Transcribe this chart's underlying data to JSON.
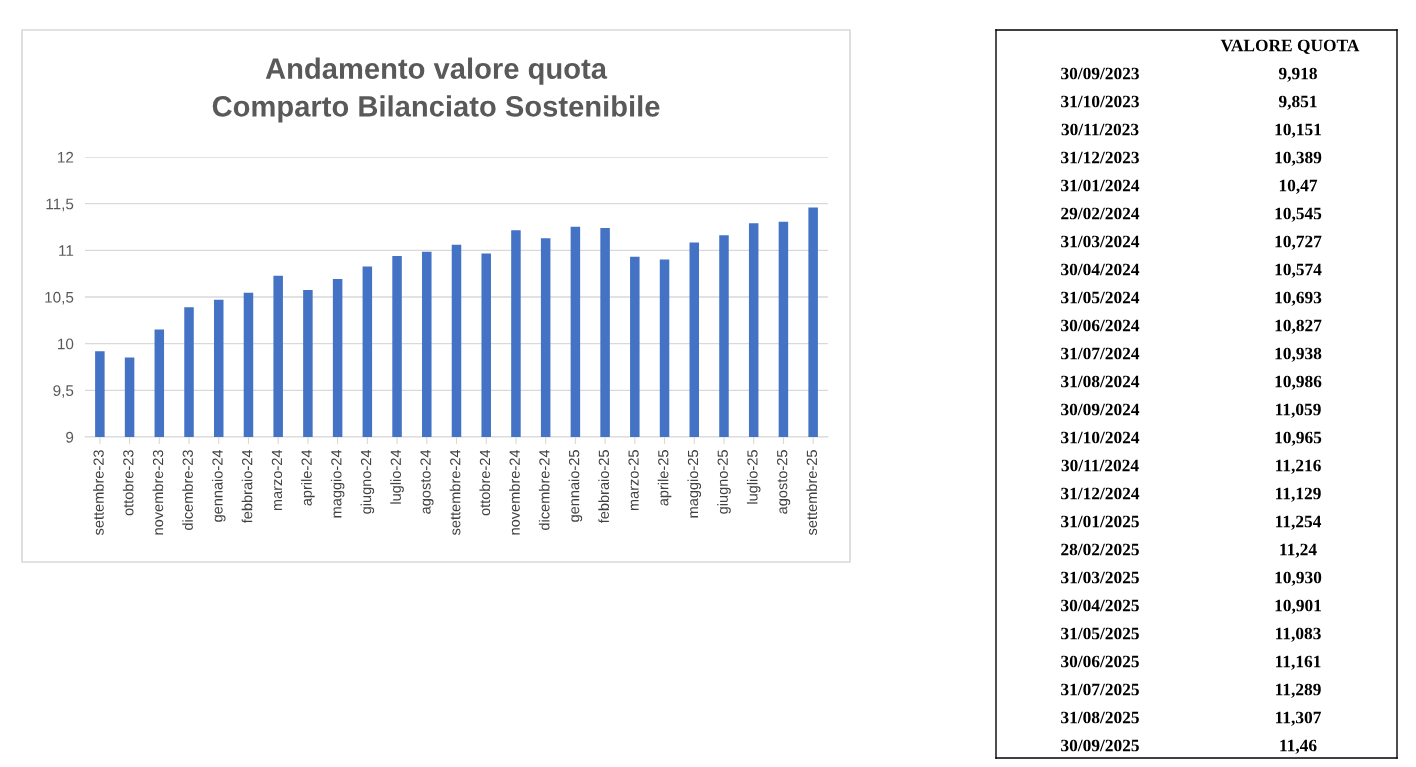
{
  "chart_data": [
    {
      "type": "bar",
      "title": "Andamento valore quota\nComparto Bilanciato Sostenibile",
      "categories": [
        "settembre-23",
        "ottobre-23",
        "novembre-23",
        "dicembre-23",
        "gennaio-24",
        "febbraio-24",
        "marzo-24",
        "aprile-24",
        "maggio-24",
        "giugno-24",
        "luglio-24",
        "agosto-24",
        "settembre-24",
        "ottobre-24",
        "novembre-24",
        "dicembre-24",
        "gennaio-25",
        "febbraio-25",
        "marzo-25",
        "aprile-25",
        "maggio-25",
        "giugno-25",
        "luglio-25",
        "agosto-25",
        "settembre-25"
      ],
      "values": [
        9.918,
        9.851,
        10.151,
        10.389,
        10.47,
        10.545,
        10.727,
        10.574,
        10.693,
        10.827,
        10.938,
        10.986,
        11.059,
        10.965,
        11.216,
        11.129,
        11.254,
        11.24,
        10.93,
        10.901,
        11.083,
        11.161,
        11.289,
        11.307,
        11.46
      ],
      "color": "#4472c4",
      "ylim": [
        9,
        12
      ],
      "yticks": [
        9,
        {
          "value": 9.5,
          "label": "9,5"
        },
        10,
        {
          "value": 10.5,
          "label": "10,5"
        },
        11,
        {
          "value": 11.5,
          "label": "11,5"
        },
        12
      ],
      "grid": "y"
    },
    {
      "type": "other",
      "title": "VALORE QUOTA",
      "categories": [
        "30/09/2023",
        "31/10/2023",
        "30/11/2023",
        "31/12/2023",
        "31/01/2024",
        "29/02/2024",
        "31/03/2024",
        "30/04/2024",
        "31/05/2024",
        "30/06/2024",
        "31/07/2024",
        "31/08/2024",
        "30/09/2024",
        "31/10/2024",
        "30/11/2024",
        "31/12/2024",
        "31/01/2025",
        "28/02/2025",
        "31/03/2025",
        "30/04/2025",
        "31/05/2025",
        "30/06/2025",
        "31/07/2025",
        "31/08/2025",
        "30/09/2025"
      ],
      "value_labels": [
        "9,918",
        "9,851",
        "10,151",
        "10,389",
        "10,47",
        "10,545",
        "10,727",
        "10,574",
        "10,693",
        "10,827",
        "10,938",
        "10,986",
        "11,059",
        "10,965",
        "11,216",
        "11,129",
        "11,254",
        "11,24",
        "10,930",
        "10,901",
        "11,083",
        "11,161",
        "11,289",
        "11,307",
        "11,46"
      ]
    }
  ]
}
